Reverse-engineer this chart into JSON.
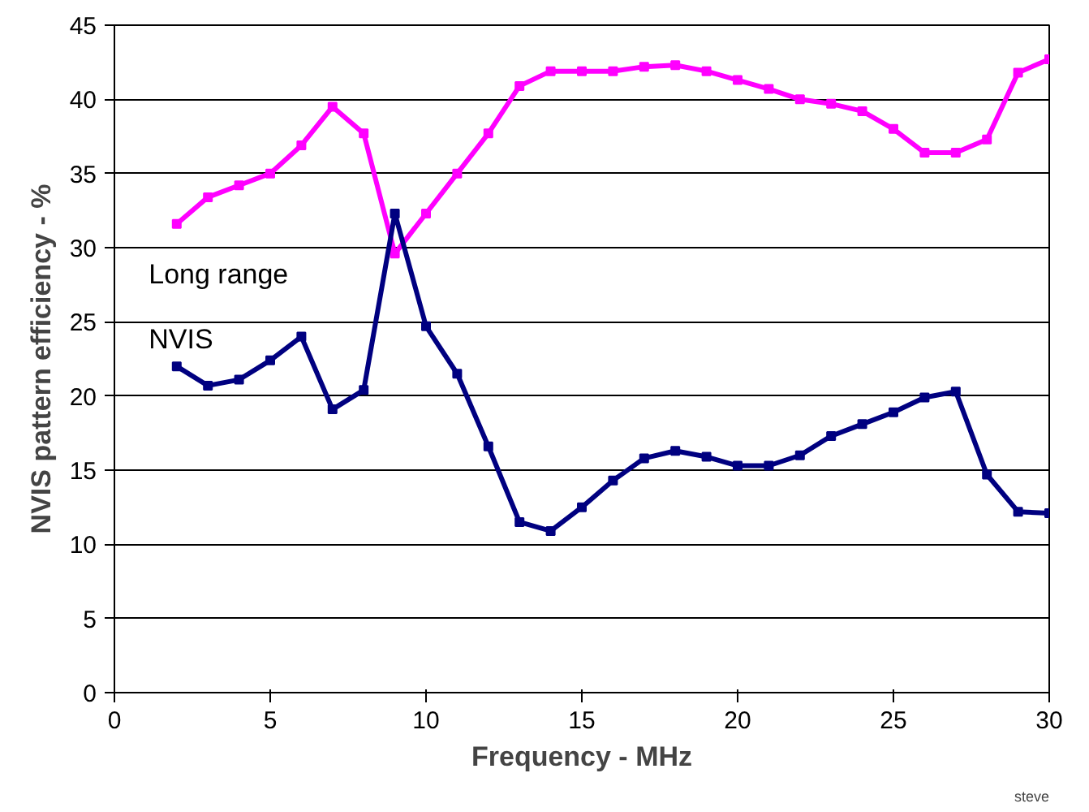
{
  "chart_data": {
    "type": "line",
    "xlabel": "Frequency - MHz",
    "ylabel": "NVIS pattern efficiency - %",
    "x": [
      2,
      3,
      4,
      5,
      6,
      7,
      8,
      9,
      10,
      11,
      12,
      13,
      14,
      15,
      16,
      17,
      18,
      19,
      20,
      21,
      22,
      23,
      24,
      25,
      26,
      27,
      28,
      29,
      30
    ],
    "series": [
      {
        "name": "Long range",
        "color": "#ff00ff",
        "values": [
          31.6,
          33.4,
          34.2,
          35.0,
          36.9,
          39.5,
          37.7,
          29.6,
          32.3,
          35.0,
          37.7,
          40.9,
          41.9,
          41.9,
          41.9,
          42.2,
          42.3,
          41.9,
          41.3,
          40.7,
          40.0,
          39.7,
          39.2,
          38.0,
          36.4,
          36.4,
          37.3,
          41.8,
          42.7
        ]
      },
      {
        "name": "NVIS",
        "color": "#000080",
        "values": [
          22.0,
          20.7,
          21.1,
          22.4,
          24.0,
          19.1,
          20.4,
          32.3,
          24.7,
          21.5,
          16.6,
          11.5,
          10.9,
          12.5,
          14.3,
          15.8,
          16.3,
          15.9,
          15.3,
          15.3,
          16.0,
          17.3,
          18.1,
          18.9,
          19.9,
          20.3,
          14.7,
          12.2,
          12.1
        ]
      }
    ],
    "xlim": [
      0,
      30
    ],
    "xticks": [
      0,
      5,
      10,
      15,
      20,
      25,
      30
    ],
    "ylim": [
      0,
      45
    ],
    "yticks": [
      0,
      5,
      10,
      15,
      20,
      25,
      30,
      35,
      40,
      45
    ],
    "grid": "y",
    "marker": "square",
    "line_style": "solid",
    "annotations": [
      "steve"
    ]
  }
}
